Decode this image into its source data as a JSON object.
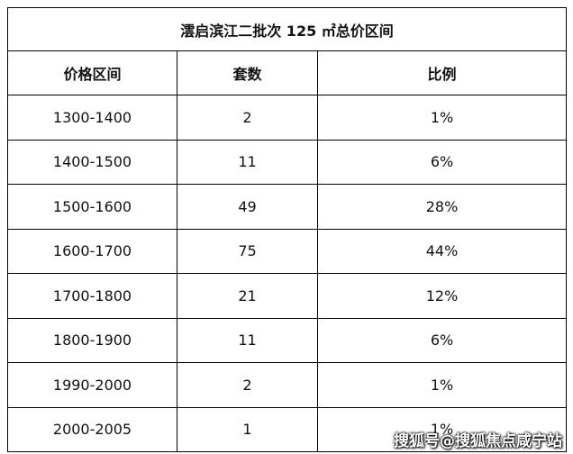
{
  "table": {
    "title": "澐启滨江二批次 125 ㎡总价区间",
    "header": [
      "价格区间",
      "套数",
      "比例"
    ],
    "rows": [
      [
        "1300-1400",
        "2",
        "1%"
      ],
      [
        "1400-1500",
        "11",
        "6%"
      ],
      [
        "1500-1600",
        "49",
        "28%"
      ],
      [
        "1600-1700",
        "75",
        "44%"
      ],
      [
        "1700-1800",
        "21",
        "12%"
      ],
      [
        "1800-1900",
        "11",
        "6%"
      ],
      [
        "1990-2000",
        "2",
        "1%"
      ],
      [
        "2000-2005",
        "1",
        "1%"
      ]
    ]
  },
  "watermark": "搜狐号@搜狐焦点咸宁站"
}
